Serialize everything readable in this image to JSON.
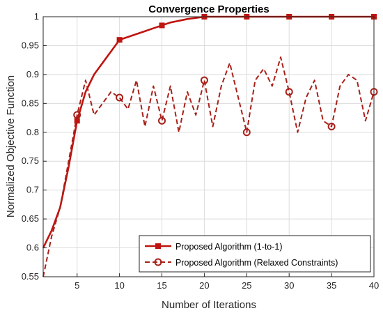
{
  "chart_data": {
    "type": "line",
    "title": "Convergence Properties",
    "xlabel": "Number of Iterations",
    "ylabel": "Normalized Objective Function",
    "xlim": [
      1,
      40
    ],
    "ylim": [
      0.55,
      1.0
    ],
    "xticks": [
      5,
      10,
      15,
      20,
      25,
      30,
      35,
      40
    ],
    "yticks": [
      0.55,
      0.6,
      0.65,
      0.7,
      0.75,
      0.8,
      0.85,
      0.9,
      0.95,
      1.0
    ],
    "ytick_labels": [
      "0.55",
      "0.6",
      "0.65",
      "0.7",
      "0.75",
      "0.8",
      "0.85",
      "0.9",
      "0.95",
      "1"
    ],
    "grid": true,
    "legend_position": "bottom-right",
    "series": [
      {
        "name": "Proposed Algorithm (1-to-1)",
        "style": "solid",
        "marker": "square",
        "marker_every": 5,
        "color": "#c0140f",
        "x": [
          1,
          2,
          3,
          4,
          5,
          6,
          7,
          8,
          9,
          10,
          11,
          12,
          13,
          14,
          15,
          16,
          17,
          18,
          19,
          20,
          25,
          30,
          35,
          40
        ],
        "y": [
          0.6,
          0.63,
          0.67,
          0.74,
          0.82,
          0.87,
          0.9,
          0.92,
          0.94,
          0.96,
          0.965,
          0.97,
          0.975,
          0.98,
          0.985,
          0.99,
          0.993,
          0.996,
          0.998,
          1.0,
          1.0,
          1.0,
          1.0,
          1.0
        ]
      },
      {
        "name": "Proposed Algorithm (Relaxed Constraints)",
        "style": "dashed",
        "marker": "circle",
        "marker_every": 5,
        "color": "#a8201a",
        "x": [
          1,
          2,
          3,
          4,
          5,
          6,
          7,
          8,
          9,
          10,
          11,
          12,
          13,
          14,
          15,
          16,
          17,
          18,
          19,
          20,
          21,
          22,
          23,
          24,
          25,
          26,
          27,
          28,
          29,
          30,
          31,
          32,
          33,
          34,
          35,
          36,
          37,
          38,
          39,
          40
        ],
        "y": [
          0.55,
          0.62,
          0.67,
          0.75,
          0.83,
          0.89,
          0.83,
          0.85,
          0.87,
          0.86,
          0.84,
          0.89,
          0.81,
          0.88,
          0.82,
          0.88,
          0.8,
          0.87,
          0.83,
          0.89,
          0.81,
          0.88,
          0.92,
          0.86,
          0.8,
          0.89,
          0.91,
          0.88,
          0.93,
          0.87,
          0.8,
          0.86,
          0.89,
          0.82,
          0.81,
          0.88,
          0.9,
          0.89,
          0.82,
          0.87
        ]
      }
    ]
  }
}
